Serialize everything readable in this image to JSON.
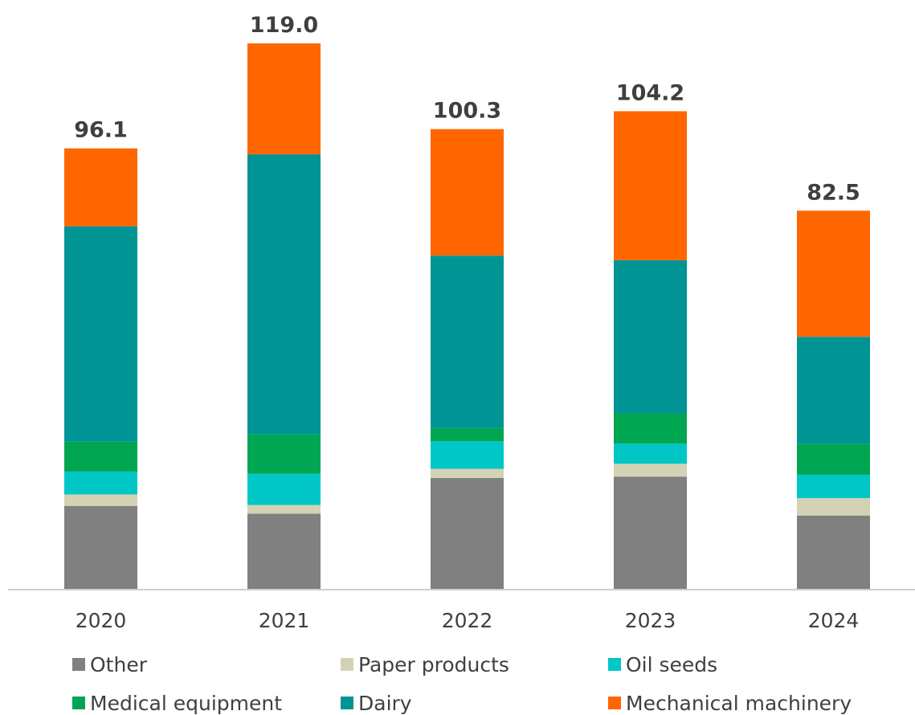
{
  "chart_data": {
    "type": "bar",
    "stacked": true,
    "categories": [
      "2020",
      "2021",
      "2022",
      "2023",
      "2024"
    ],
    "totals": [
      "96.1",
      "119.0",
      "100.3",
      "104.2",
      "82.5"
    ],
    "series": [
      {
        "name": "Other",
        "color": "#808080",
        "values": [
          18.1,
          16.4,
          24.2,
          24.5,
          16.0
        ]
      },
      {
        "name": "Paper products",
        "color": "#d4d2b4",
        "values": [
          2.5,
          1.9,
          2.0,
          2.8,
          3.8
        ]
      },
      {
        "name": "Oil seeds",
        "color": "#00c6c6",
        "values": [
          5.0,
          6.8,
          6.0,
          4.4,
          5.1
        ]
      },
      {
        "name": "Medical equipment",
        "color": "#00a651",
        "values": [
          6.5,
          8.6,
          2.9,
          6.6,
          6.8
        ]
      },
      {
        "name": "Dairy",
        "color": "#009494",
        "values": [
          47.0,
          61.1,
          37.6,
          33.4,
          23.3
        ]
      },
      {
        "name": "Mechanical machinery",
        "color": "#ff6600",
        "values": [
          17.0,
          24.2,
          27.6,
          32.5,
          27.5
        ]
      }
    ],
    "ylim": [
      0,
      119.0
    ],
    "grid": false,
    "legend_position": "bottom"
  }
}
